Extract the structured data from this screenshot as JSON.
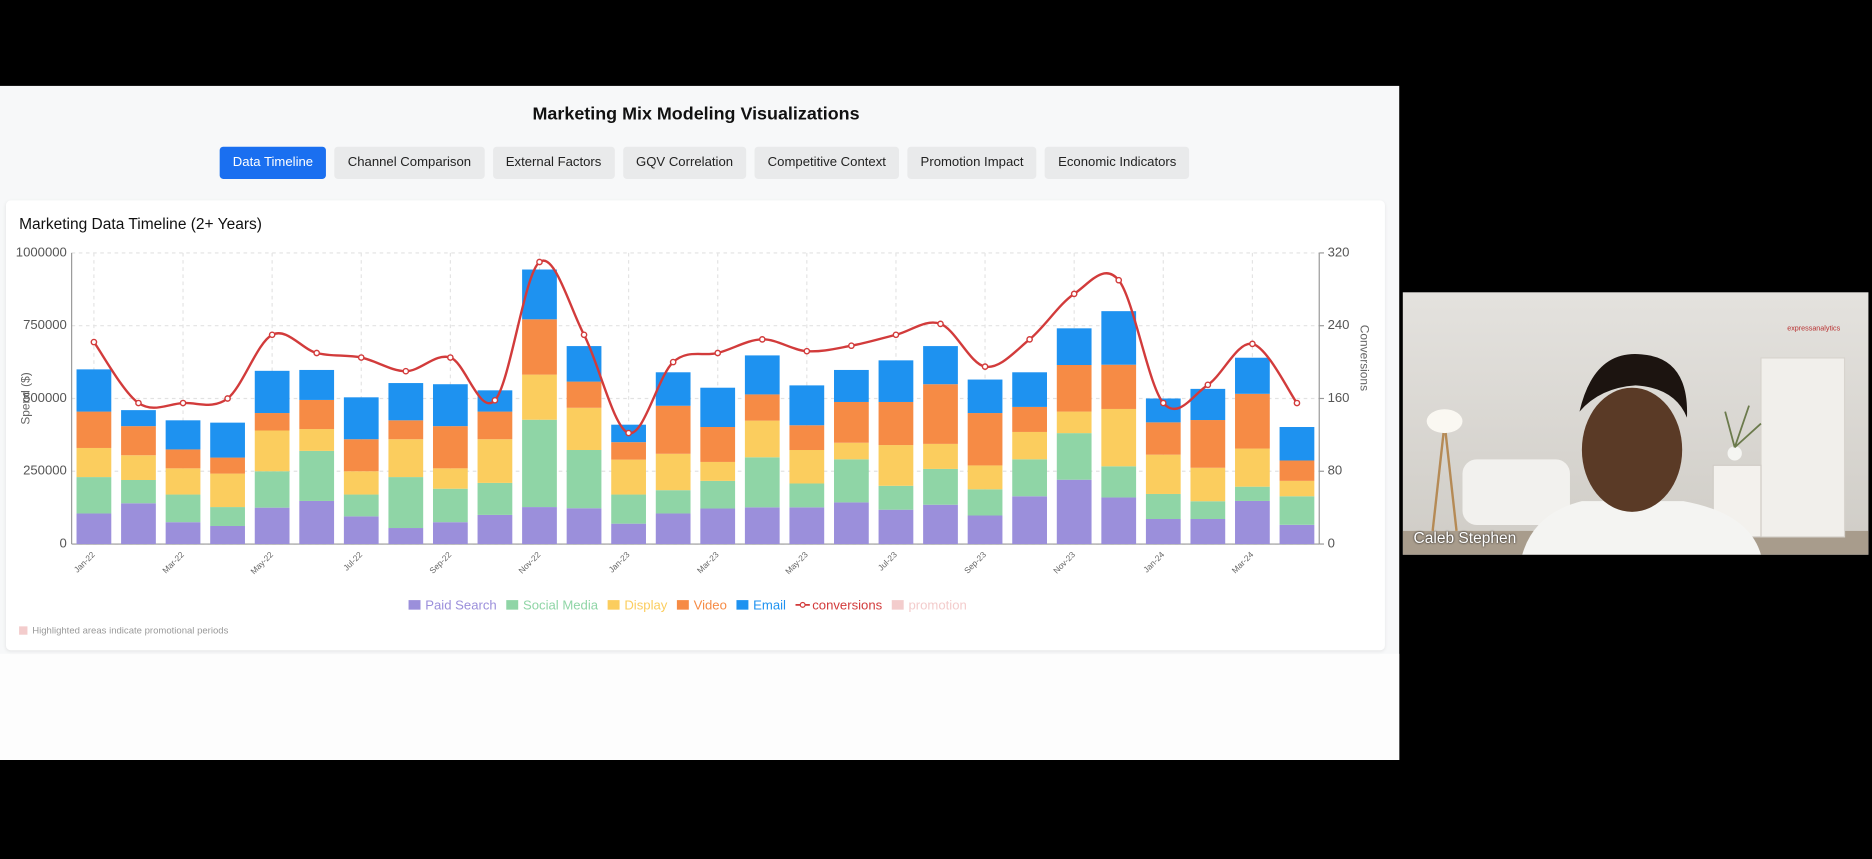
{
  "page": {
    "title": "Marketing Mix Modeling Visualizations",
    "tabs": [
      "Data Timeline",
      "Channel Comparison",
      "External Factors",
      "GQV Correlation",
      "Competitive Context",
      "Promotion Impact",
      "Economic Indicators"
    ],
    "active_tab": 0
  },
  "chart_data": {
    "type": "bar",
    "stacked": true,
    "title": "Marketing Data Timeline (2+ Years)",
    "categories": [
      "Jan-22",
      null,
      "Mar-22",
      null,
      "May-22",
      null,
      "Jul-22",
      null,
      "Sep-22",
      null,
      "Nov-22",
      null,
      "Jan-23",
      null,
      "Mar-23",
      null,
      "May-23",
      null,
      "Jul-23",
      null,
      "Sep-23",
      null,
      "Nov-23",
      null,
      "Jan-24",
      null,
      "Mar-24",
      null
    ],
    "series": [
      {
        "name": "Paid Search",
        "color": "#9b8fdb",
        "values": [
          105000,
          140000,
          75000,
          62000,
          125000,
          148000,
          95000,
          55000,
          75000,
          100000,
          127000,
          123000,
          70000,
          105000,
          122000,
          126000,
          126000,
          143000,
          118000,
          135000,
          98000,
          164000,
          221000,
          160000,
          86000,
          86000,
          148000,
          66000
        ]
      },
      {
        "name": "Social Media",
        "color": "#8fd5a6",
        "values": [
          125000,
          80000,
          95000,
          65000,
          125000,
          172000,
          75000,
          175000,
          115000,
          110000,
          300000,
          200000,
          100000,
          80000,
          95000,
          172000,
          82000,
          148000,
          82000,
          123000,
          90000,
          127000,
          160000,
          107000,
          86000,
          61000,
          49000,
          98000
        ]
      },
      {
        "name": "Display",
        "color": "#fbcd5e",
        "values": [
          100000,
          85000,
          90000,
          115000,
          140000,
          75000,
          80000,
          130000,
          70000,
          150000,
          155000,
          145000,
          120000,
          125000,
          65000,
          126000,
          115000,
          57000,
          140000,
          86000,
          82000,
          94000,
          74000,
          197000,
          135000,
          115000,
          131000,
          53000
        ]
      },
      {
        "name": "Video",
        "color": "#f68b45",
        "values": [
          125000,
          100000,
          65000,
          55000,
          60000,
          100000,
          110000,
          65000,
          145000,
          95000,
          190000,
          90000,
          60000,
          165000,
          120000,
          90000,
          85000,
          140000,
          148000,
          205000,
          180000,
          86000,
          160000,
          152000,
          111000,
          164000,
          188000,
          70000
        ]
      },
      {
        "name": "Email",
        "color": "#1e92f0",
        "values": [
          145000,
          55000,
          100000,
          120000,
          145000,
          103000,
          144000,
          128000,
          144000,
          73000,
          171000,
          122000,
          60000,
          115000,
          135000,
          134000,
          137000,
          110000,
          143000,
          131000,
          115000,
          119000,
          126000,
          184000,
          82000,
          107000,
          124000,
          115000
        ]
      },
      {
        "name": "conversions",
        "type": "line",
        "axis": "y2",
        "color": "#d23b3b",
        "values": [
          222,
          155,
          155,
          160,
          230,
          210,
          205,
          190,
          205,
          158,
          310,
          230,
          122,
          200,
          210,
          225,
          212,
          218,
          230,
          242,
          195,
          225,
          275,
          290,
          155,
          175,
          220,
          155
        ]
      }
    ],
    "promotion_legend": {
      "name": "promotion",
      "color": "#f3cccc"
    },
    "ylim": [
      0,
      1000000
    ],
    "yticks": [
      0,
      250000,
      500000,
      750000,
      1000000
    ],
    "y2lim": [
      0,
      320
    ],
    "y2ticks": [
      0,
      80,
      160,
      240,
      320
    ],
    "y_label": "Spend ($)",
    "y2_label": "Conversions",
    "grid": true,
    "legend": "bottom",
    "note": "Highlighted areas indicate promotional periods"
  },
  "video": {
    "participant": "Caleb Stephen",
    "logo": "expressanalytics"
  }
}
